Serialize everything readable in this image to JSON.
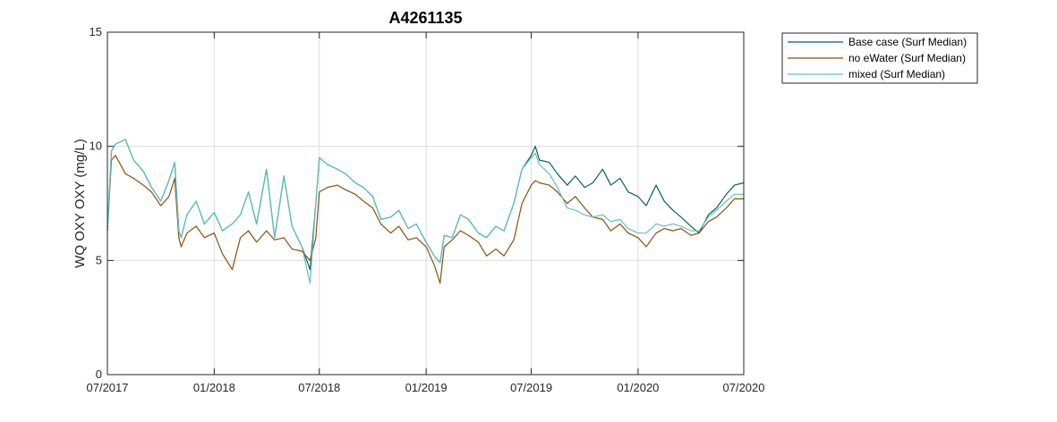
{
  "chart_data": {
    "type": "line",
    "title": "A4261135",
    "ylabel": "WQ OXY OXY (mg/L)",
    "xlabel": "",
    "xlim": [
      "2017-07-01",
      "2020-07-01"
    ],
    "ylim": [
      0,
      15
    ],
    "yticks": [
      "0",
      "5",
      "10",
      "15"
    ],
    "xticks": [
      {
        "date": "2017-07-01",
        "label": "07/2017"
      },
      {
        "date": "2018-01-01",
        "label": "01/2018"
      },
      {
        "date": "2018-07-01",
        "label": "07/2018"
      },
      {
        "date": "2019-01-01",
        "label": "01/2019"
      },
      {
        "date": "2019-07-01",
        "label": "07/2019"
      },
      {
        "date": "2020-01-01",
        "label": "01/2020"
      },
      {
        "date": "2020-07-01",
        "label": "07/2020"
      }
    ],
    "grid": true,
    "legend_position": "outside-top-right",
    "series": [
      {
        "name": "Base case (Surf Median)",
        "color": "#0b5e6b",
        "x": [
          "2017-07-01",
          "2017-07-08",
          "2017-07-15",
          "2017-08-01",
          "2017-08-15",
          "2017-09-01",
          "2017-09-15",
          "2017-10-01",
          "2017-10-15",
          "2017-10-25",
          "2017-11-01",
          "2017-11-05",
          "2017-11-15",
          "2017-12-01",
          "2017-12-15",
          "2018-01-01",
          "2018-01-15",
          "2018-02-01",
          "2018-02-15",
          "2018-03-01",
          "2018-03-15",
          "2018-04-01",
          "2018-04-15",
          "2018-05-01",
          "2018-05-15",
          "2018-06-01",
          "2018-06-15",
          "2018-06-25",
          "2018-07-01",
          "2018-07-15",
          "2018-08-01",
          "2018-08-15",
          "2018-09-01",
          "2018-09-15",
          "2018-10-01",
          "2018-10-15",
          "2018-11-01",
          "2018-11-15",
          "2018-12-01",
          "2018-12-15",
          "2019-01-01",
          "2019-01-15",
          "2019-01-25",
          "2019-02-01",
          "2019-02-15",
          "2019-03-01",
          "2019-03-15",
          "2019-04-01",
          "2019-04-15",
          "2019-05-01",
          "2019-05-15",
          "2019-06-01",
          "2019-06-15",
          "2019-07-01",
          "2019-07-08",
          "2019-07-15",
          "2019-08-01",
          "2019-08-15",
          "2019-09-01",
          "2019-09-15",
          "2019-10-01",
          "2019-10-15",
          "2019-11-01",
          "2019-11-15",
          "2019-12-01",
          "2019-12-15",
          "2020-01-01",
          "2020-01-15",
          "2020-02-01",
          "2020-02-15",
          "2020-03-01",
          "2020-03-15",
          "2020-04-01",
          "2020-04-15",
          "2020-05-01",
          "2020-05-15",
          "2020-06-01",
          "2020-06-15",
          "2020-07-01"
        ],
        "y": [
          6.3,
          9.8,
          10.1,
          10.3,
          9.4,
          8.9,
          8.2,
          7.6,
          8.5,
          9.3,
          6.3,
          6.0,
          7.0,
          7.6,
          6.6,
          7.1,
          6.3,
          6.6,
          7.0,
          8.0,
          6.6,
          9.0,
          6.0,
          8.7,
          6.5,
          5.6,
          4.6,
          7.5,
          9.5,
          9.2,
          9.0,
          8.8,
          8.4,
          8.2,
          7.8,
          6.8,
          6.9,
          7.2,
          6.4,
          6.6,
          5.8,
          5.2,
          4.9,
          6.1,
          6.0,
          7.0,
          6.8,
          6.2,
          6.0,
          6.5,
          6.3,
          7.5,
          9.0,
          9.6,
          10.0,
          9.4,
          9.3,
          8.8,
          8.3,
          8.7,
          8.2,
          8.4,
          9.0,
          8.3,
          8.6,
          8.0,
          7.8,
          7.4,
          8.3,
          7.6,
          7.2,
          6.9,
          6.5,
          6.2,
          7.0,
          7.3,
          7.9,
          8.3,
          8.4
        ]
      },
      {
        "name": "no eWater (Surf Median)",
        "color": "#8b4f0f",
        "x": [
          "2017-07-01",
          "2017-07-08",
          "2017-07-15",
          "2017-08-01",
          "2017-08-15",
          "2017-09-01",
          "2017-09-15",
          "2017-10-01",
          "2017-10-15",
          "2017-10-25",
          "2017-11-01",
          "2017-11-05",
          "2017-11-15",
          "2017-12-01",
          "2017-12-15",
          "2018-01-01",
          "2018-01-15",
          "2018-02-01",
          "2018-02-15",
          "2018-03-01",
          "2018-03-15",
          "2018-04-01",
          "2018-04-15",
          "2018-05-01",
          "2018-05-15",
          "2018-06-01",
          "2018-06-15",
          "2018-06-25",
          "2018-07-01",
          "2018-07-15",
          "2018-08-01",
          "2018-08-15",
          "2018-09-01",
          "2018-09-15",
          "2018-10-01",
          "2018-10-15",
          "2018-11-01",
          "2018-11-15",
          "2018-12-01",
          "2018-12-15",
          "2019-01-01",
          "2019-01-15",
          "2019-01-25",
          "2019-02-01",
          "2019-02-15",
          "2019-03-01",
          "2019-03-15",
          "2019-04-01",
          "2019-04-15",
          "2019-05-01",
          "2019-05-15",
          "2019-06-01",
          "2019-06-15",
          "2019-07-01",
          "2019-07-08",
          "2019-07-15",
          "2019-08-01",
          "2019-08-15",
          "2019-09-01",
          "2019-09-15",
          "2019-10-01",
          "2019-10-15",
          "2019-11-01",
          "2019-11-15",
          "2019-12-01",
          "2019-12-15",
          "2020-01-01",
          "2020-01-15",
          "2020-02-01",
          "2020-02-15",
          "2020-03-01",
          "2020-03-15",
          "2020-04-01",
          "2020-04-15",
          "2020-05-01",
          "2020-05-15",
          "2020-06-01",
          "2020-06-15",
          "2020-07-01"
        ],
        "y": [
          6.3,
          9.4,
          9.6,
          8.8,
          8.6,
          8.3,
          8.0,
          7.4,
          7.8,
          8.6,
          6.0,
          5.6,
          6.2,
          6.5,
          6.0,
          6.2,
          5.3,
          4.6,
          6.0,
          6.3,
          5.8,
          6.3,
          5.9,
          6.0,
          5.5,
          5.4,
          5.0,
          6.0,
          8.0,
          8.2,
          8.3,
          8.1,
          7.9,
          7.6,
          7.3,
          6.6,
          6.2,
          6.5,
          5.9,
          6.0,
          5.6,
          4.8,
          4.0,
          5.6,
          5.9,
          6.3,
          6.1,
          5.8,
          5.2,
          5.5,
          5.2,
          5.9,
          7.5,
          8.3,
          8.5,
          8.4,
          8.3,
          8.0,
          7.5,
          7.8,
          7.3,
          6.9,
          6.8,
          6.3,
          6.6,
          6.2,
          6.0,
          5.6,
          6.2,
          6.4,
          6.3,
          6.4,
          6.1,
          6.2,
          6.7,
          6.9,
          7.3,
          7.7,
          7.7
        ]
      },
      {
        "name": "mixed (Surf Median)",
        "color": "#5fc2ba",
        "x": [
          "2017-07-01",
          "2017-07-08",
          "2017-07-15",
          "2017-08-01",
          "2017-08-15",
          "2017-09-01",
          "2017-09-15",
          "2017-10-01",
          "2017-10-15",
          "2017-10-25",
          "2017-11-01",
          "2017-11-05",
          "2017-11-15",
          "2017-12-01",
          "2017-12-15",
          "2018-01-01",
          "2018-01-15",
          "2018-02-01",
          "2018-02-15",
          "2018-03-01",
          "2018-03-15",
          "2018-04-01",
          "2018-04-15",
          "2018-05-01",
          "2018-05-15",
          "2018-06-01",
          "2018-06-15",
          "2018-06-25",
          "2018-07-01",
          "2018-07-15",
          "2018-08-01",
          "2018-08-15",
          "2018-09-01",
          "2018-09-15",
          "2018-10-01",
          "2018-10-15",
          "2018-11-01",
          "2018-11-15",
          "2018-12-01",
          "2018-12-15",
          "2019-01-01",
          "2019-01-15",
          "2019-01-25",
          "2019-02-01",
          "2019-02-15",
          "2019-03-01",
          "2019-03-15",
          "2019-04-01",
          "2019-04-15",
          "2019-05-01",
          "2019-05-15",
          "2019-06-01",
          "2019-06-15",
          "2019-07-01",
          "2019-07-08",
          "2019-07-15",
          "2019-08-01",
          "2019-08-15",
          "2019-09-01",
          "2019-09-15",
          "2019-10-01",
          "2019-10-15",
          "2019-11-01",
          "2019-11-15",
          "2019-12-01",
          "2019-12-15",
          "2020-01-01",
          "2020-01-15",
          "2020-02-01",
          "2020-02-15",
          "2020-03-01",
          "2020-03-15",
          "2020-04-01",
          "2020-04-15",
          "2020-05-01",
          "2020-05-15",
          "2020-06-01",
          "2020-06-15",
          "2020-07-01"
        ],
        "y": [
          6.3,
          9.8,
          10.1,
          10.3,
          9.4,
          8.9,
          8.2,
          7.6,
          8.5,
          9.3,
          6.3,
          6.0,
          7.0,
          7.6,
          6.6,
          7.1,
          6.3,
          6.6,
          7.0,
          8.0,
          6.6,
          9.0,
          6.0,
          8.7,
          6.5,
          5.6,
          4.0,
          7.5,
          9.5,
          9.2,
          9.0,
          8.8,
          8.4,
          8.2,
          7.8,
          6.8,
          6.9,
          7.2,
          6.4,
          6.6,
          5.8,
          5.2,
          4.9,
          6.1,
          6.0,
          7.0,
          6.8,
          6.2,
          6.0,
          6.5,
          6.3,
          7.5,
          9.0,
          9.5,
          9.7,
          9.2,
          8.8,
          8.2,
          7.3,
          7.2,
          7.0,
          6.9,
          7.0,
          6.7,
          6.8,
          6.4,
          6.2,
          6.2,
          6.6,
          6.5,
          6.6,
          6.5,
          6.3,
          6.3,
          6.9,
          7.2,
          7.6,
          7.9,
          7.9
        ]
      }
    ]
  }
}
